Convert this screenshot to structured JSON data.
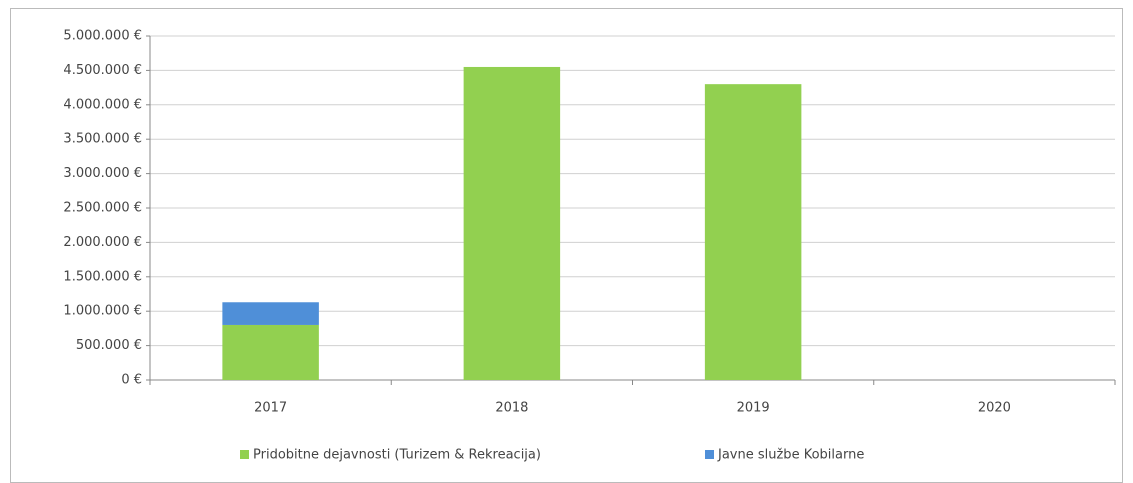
{
  "chart_data": {
    "type": "bar",
    "stacked": true,
    "categories": [
      "2017",
      "2018",
      "2019",
      "2020"
    ],
    "series": [
      {
        "name": "Pridobitne dejavnosti (Turizem & Rekreacija)",
        "color": "#92d050",
        "values": [
          800000,
          4550000,
          4300000,
          0
        ]
      },
      {
        "name": "Javne službe Kobilarne",
        "color": "#4f8fd8",
        "values": [
          330000,
          0,
          0,
          0
        ]
      }
    ],
    "ylim": [
      0,
      5000000
    ],
    "yticks": [
      {
        "value": 0,
        "label": "0 €"
      },
      {
        "value": 500000,
        "label": "500.000 €"
      },
      {
        "value": 1000000,
        "label": "1.000.000 €"
      },
      {
        "value": 1500000,
        "label": "1.500.000 €"
      },
      {
        "value": 2000000,
        "label": "2.000.000 €"
      },
      {
        "value": 2500000,
        "label": "2.500.000 €"
      },
      {
        "value": 3000000,
        "label": "3.000.000 €"
      },
      {
        "value": 3500000,
        "label": "3.500.000 €"
      },
      {
        "value": 4000000,
        "label": "4.000.000 €"
      },
      {
        "value": 4500000,
        "label": "4.500.000 €"
      },
      {
        "value": 5000000,
        "label": "5.000.000 €"
      }
    ],
    "grid": true,
    "legend": "bottom"
  }
}
